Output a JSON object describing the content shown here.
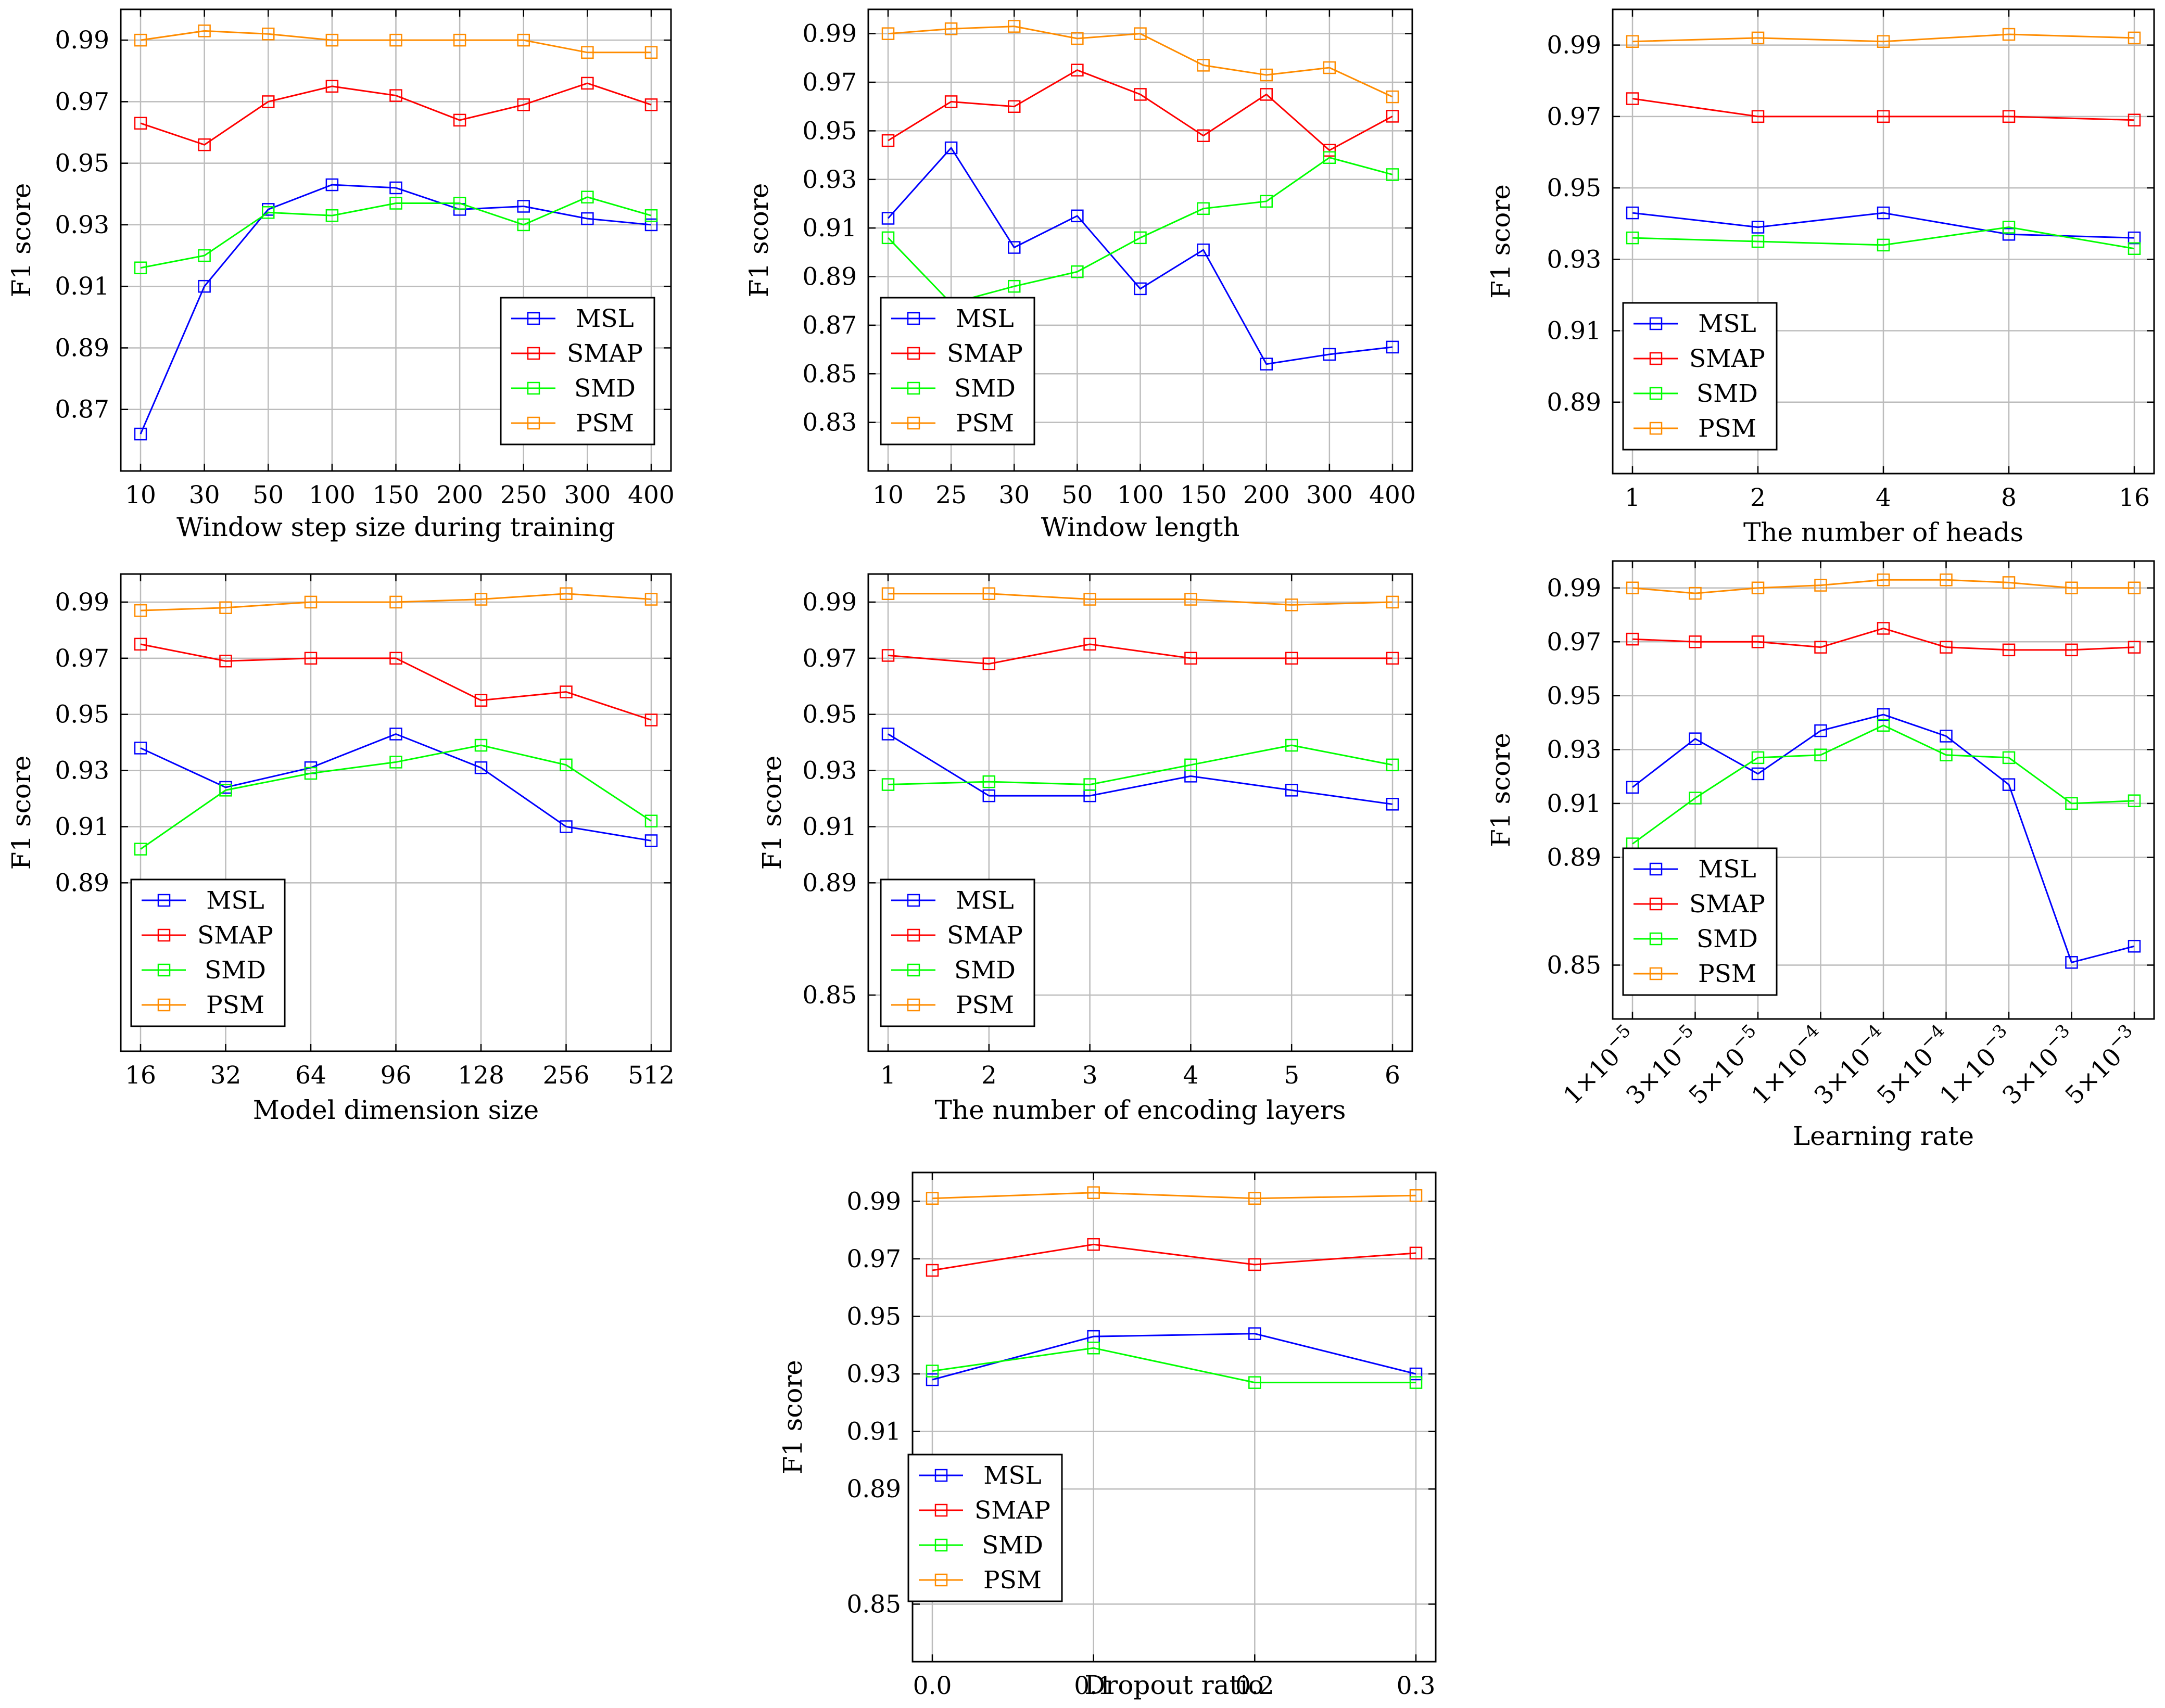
{
  "chart_data": [
    {
      "id": "step",
      "type": "line",
      "xlabel": "Window step size during training",
      "ylabel": "F1 score",
      "categories": [
        "10",
        "30",
        "50",
        "100",
        "150",
        "200",
        "250",
        "300",
        "400"
      ],
      "ylim": [
        0.85,
        1.0
      ],
      "yticks": [
        "0.87",
        "0.89",
        "0.91",
        "0.93",
        "0.95",
        "0.97",
        "0.99"
      ],
      "legend": "lower-right",
      "series": [
        {
          "name": "MSL",
          "color": "#0000ff",
          "values": [
            0.862,
            0.91,
            0.935,
            0.943,
            0.942,
            0.935,
            0.936,
            0.932,
            0.93
          ]
        },
        {
          "name": "SMAP",
          "color": "#ff0000",
          "values": [
            0.963,
            0.956,
            0.97,
            0.975,
            0.972,
            0.964,
            0.969,
            0.976,
            0.969
          ]
        },
        {
          "name": "SMD",
          "color": "#00ff00",
          "values": [
            0.916,
            0.92,
            0.934,
            0.933,
            0.937,
            0.937,
            0.93,
            0.939,
            0.933
          ]
        },
        {
          "name": "PSM",
          "color": "#ff8c00",
          "values": [
            0.99,
            0.993,
            0.992,
            0.99,
            0.99,
            0.99,
            0.99,
            0.986,
            0.986
          ]
        }
      ]
    },
    {
      "id": "length",
      "type": "line",
      "xlabel": "Window length",
      "ylabel": "F1 score",
      "categories": [
        "10",
        "25",
        "30",
        "50",
        "100",
        "150",
        "200",
        "300",
        "400"
      ],
      "ylim": [
        0.81,
        1.0
      ],
      "yticks": [
        "0.83",
        "0.85",
        "0.87",
        "0.89",
        "0.91",
        "0.93",
        "0.95",
        "0.97",
        "0.99"
      ],
      "legend": "lower-left",
      "series": [
        {
          "name": "MSL",
          "color": "#0000ff",
          "values": [
            0.914,
            0.943,
            0.902,
            0.915,
            0.885,
            0.901,
            0.854,
            0.858,
            0.861
          ]
        },
        {
          "name": "SMAP",
          "color": "#ff0000",
          "values": [
            0.946,
            0.962,
            0.96,
            0.975,
            0.965,
            0.948,
            0.965,
            0.942,
            0.956
          ]
        },
        {
          "name": "SMD",
          "color": "#00ff00",
          "values": [
            0.906,
            0.879,
            0.886,
            0.892,
            0.906,
            0.918,
            0.921,
            0.939,
            0.932
          ]
        },
        {
          "name": "PSM",
          "color": "#ff8c00",
          "values": [
            0.99,
            0.992,
            0.993,
            0.988,
            0.99,
            0.977,
            0.973,
            0.976,
            0.964
          ]
        }
      ]
    },
    {
      "id": "heads",
      "type": "line",
      "xlabel": "The number of heads",
      "ylabel": "F1 score",
      "categories": [
        "1",
        "2",
        "4",
        "8",
        "16"
      ],
      "ylim": [
        0.87,
        1.0
      ],
      "yticks": [
        "0.89",
        "0.91",
        "0.93",
        "0.95",
        "0.97",
        "0.99"
      ],
      "legend": "lower-left",
      "series": [
        {
          "name": "MSL",
          "color": "#0000ff",
          "values": [
            0.943,
            0.939,
            0.943,
            0.937,
            0.936
          ]
        },
        {
          "name": "SMAP",
          "color": "#ff0000",
          "values": [
            0.975,
            0.97,
            0.97,
            0.97,
            0.969
          ]
        },
        {
          "name": "SMD",
          "color": "#00ff00",
          "values": [
            0.936,
            0.935,
            0.934,
            0.939,
            0.933
          ]
        },
        {
          "name": "PSM",
          "color": "#ff8c00",
          "values": [
            0.991,
            0.992,
            0.991,
            0.993,
            0.992
          ]
        }
      ]
    },
    {
      "id": "dim",
      "type": "line",
      "xlabel": "Model dimension size",
      "ylabel": "F1 score",
      "categories": [
        "16",
        "32",
        "64",
        "96",
        "128",
        "256",
        "512"
      ],
      "ylim": [
        0.83,
        1.0
      ],
      "yticks": [
        "0.89",
        "0.91",
        "0.93",
        "0.95",
        "0.97",
        "0.99"
      ],
      "legend": "lower-left",
      "series": [
        {
          "name": "MSL",
          "color": "#0000ff",
          "values": [
            0.938,
            0.924,
            0.931,
            0.943,
            0.931,
            0.91,
            0.905
          ]
        },
        {
          "name": "SMAP",
          "color": "#ff0000",
          "values": [
            0.975,
            0.969,
            0.97,
            0.97,
            0.955,
            0.958,
            0.948
          ]
        },
        {
          "name": "SMD",
          "color": "#00ff00",
          "values": [
            0.902,
            0.923,
            0.929,
            0.933,
            0.939,
            0.932,
            0.912
          ]
        },
        {
          "name": "PSM",
          "color": "#ff8c00",
          "values": [
            0.987,
            0.988,
            0.99,
            0.99,
            0.991,
            0.993,
            0.991
          ]
        }
      ]
    },
    {
      "id": "layers",
      "type": "line",
      "xlabel": "The number of encoding layers",
      "ylabel": "F1 score",
      "categories": [
        "1",
        "2",
        "3",
        "4",
        "5",
        "6"
      ],
      "ylim": [
        0.83,
        1.0
      ],
      "yticks": [
        "0.85",
        "0.89",
        "0.91",
        "0.93",
        "0.95",
        "0.97",
        "0.99"
      ],
      "legend": "lower-left",
      "series": [
        {
          "name": "MSL",
          "color": "#0000ff",
          "values": [
            0.943,
            0.921,
            0.921,
            0.928,
            0.923,
            0.918
          ]
        },
        {
          "name": "SMAP",
          "color": "#ff0000",
          "values": [
            0.971,
            0.968,
            0.975,
            0.97,
            0.97,
            0.97
          ]
        },
        {
          "name": "SMD",
          "color": "#00ff00",
          "values": [
            0.925,
            0.926,
            0.925,
            0.932,
            0.939,
            0.932
          ]
        },
        {
          "name": "PSM",
          "color": "#ff8c00",
          "values": [
            0.993,
            0.993,
            0.991,
            0.991,
            0.989,
            0.99
          ]
        }
      ]
    },
    {
      "id": "lr",
      "type": "line",
      "xlabel": "Learning rate",
      "ylabel": "F1 score",
      "categories": [
        "1×10",
        "3×10",
        "5×10",
        "1×10",
        "3×10",
        "5×10",
        "1×10",
        "3×10",
        "5×10"
      ],
      "exponents": [
        "−5",
        "−5",
        "−5",
        "−4",
        "−4",
        "−4",
        "−3",
        "−3",
        "−3"
      ],
      "ylim": [
        0.83,
        1.0
      ],
      "yticks": [
        "0.85",
        "0.89",
        "0.91",
        "0.93",
        "0.95",
        "0.97",
        "0.99"
      ],
      "legend": "lower-left",
      "series": [
        {
          "name": "MSL",
          "color": "#0000ff",
          "values": [
            0.916,
            0.934,
            0.921,
            0.937,
            0.943,
            0.935,
            0.917,
            0.851,
            0.857
          ]
        },
        {
          "name": "SMAP",
          "color": "#ff0000",
          "values": [
            0.971,
            0.97,
            0.97,
            0.968,
            0.975,
            0.968,
            0.967,
            0.967,
            0.968
          ]
        },
        {
          "name": "SMD",
          "color": "#00ff00",
          "values": [
            0.895,
            0.912,
            0.927,
            0.928,
            0.939,
            0.928,
            0.927,
            0.91,
            0.911
          ]
        },
        {
          "name": "PSM",
          "color": "#ff8c00",
          "values": [
            0.99,
            0.988,
            0.99,
            0.991,
            0.993,
            0.993,
            0.992,
            0.99,
            0.99
          ]
        }
      ]
    },
    {
      "id": "dropout",
      "type": "line",
      "xlabel": "Dropout ratio",
      "ylabel": "F1 score",
      "categories": [
        "0.0",
        "0.1",
        "0.2",
        "0.3"
      ],
      "ylim": [
        0.83,
        1.0
      ],
      "yticks": [
        "0.85",
        "0.89",
        "0.91",
        "0.93",
        "0.95",
        "0.97",
        "0.99"
      ],
      "legend": "lower-left",
      "series": [
        {
          "name": "MSL",
          "color": "#0000ff",
          "values": [
            0.928,
            0.943,
            0.944,
            0.93
          ]
        },
        {
          "name": "SMAP",
          "color": "#ff0000",
          "values": [
            0.966,
            0.975,
            0.968,
            0.972
          ]
        },
        {
          "name": "SMD",
          "color": "#00ff00",
          "values": [
            0.931,
            0.939,
            0.927,
            0.927
          ]
        },
        {
          "name": "PSM",
          "color": "#ff8c00",
          "values": [
            0.991,
            0.993,
            0.991,
            0.992
          ]
        }
      ]
    }
  ]
}
